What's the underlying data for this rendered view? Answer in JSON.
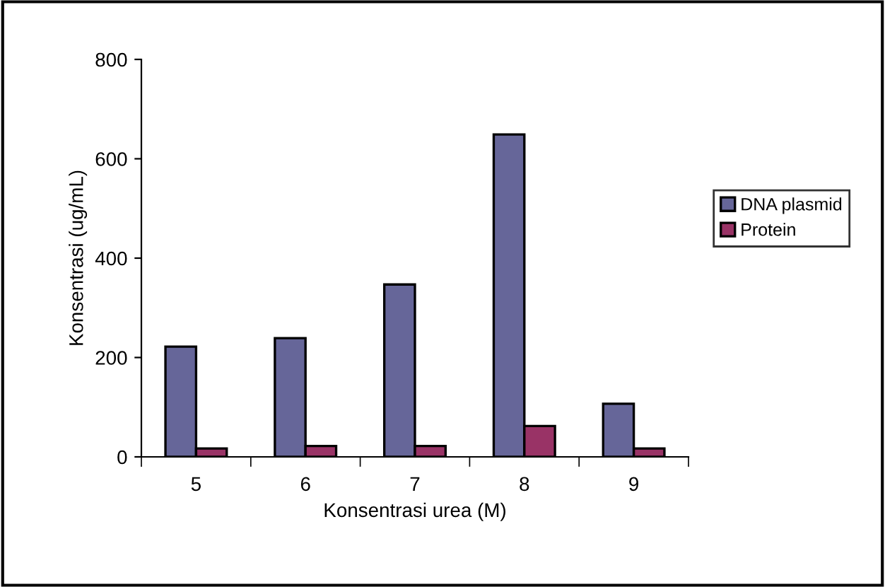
{
  "chart_data": {
    "type": "bar",
    "xlabel": "Konsentrasi urea (M)",
    "ylabel": "Konsentrasi (ug/mL)",
    "categories": [
      "5",
      "6",
      "7",
      "8",
      "9"
    ],
    "series": [
      {
        "name": "DNA plasmid",
        "color": "#666699",
        "values": [
          222,
          239,
          347,
          649,
          107
        ]
      },
      {
        "name": "Protein",
        "color": "#993366",
        "values": [
          17,
          22,
          22,
          62,
          17
        ]
      }
    ],
    "ylim": [
      0,
      800
    ],
    "yticks": [
      0,
      200,
      400,
      600,
      800
    ],
    "grid": false,
    "legend": "right"
  }
}
